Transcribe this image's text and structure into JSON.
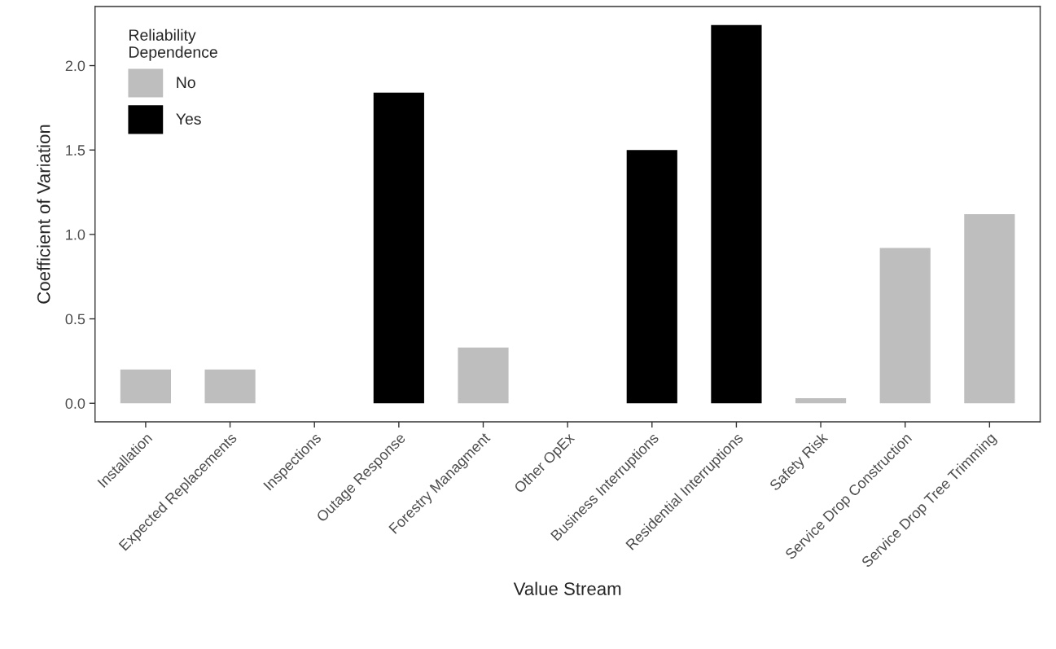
{
  "chart_data": {
    "type": "bar",
    "xlabel": "Value Stream",
    "ylabel": "Coefficient of Variation",
    "legend_title": "Reliability\nDependence",
    "categories": [
      "Installation",
      "Expected Replacements",
      "Inspections",
      "Outage Response",
      "Forestry Managment",
      "Other OpEx",
      "Business Interruptions",
      "Residential Interruptions",
      "Safety Risk",
      "Service Drop Construction",
      "Service Drop Tree Trimming"
    ],
    "series": [
      {
        "name": "No",
        "color": "#bebebe",
        "values": [
          0.2,
          0.2,
          0,
          null,
          0.33,
          0,
          null,
          null,
          0.03,
          0.92,
          1.12
        ]
      },
      {
        "name": "Yes",
        "color": "#000000",
        "values": [
          null,
          null,
          null,
          1.84,
          null,
          null,
          1.5,
          2.24,
          null,
          null,
          null
        ]
      }
    ],
    "ylim": [
      -0.11,
      2.35
    ],
    "yticks": [
      {
        "value": 0,
        "label": "0.0"
      },
      {
        "value": 0.5,
        "label": "0.5"
      },
      {
        "value": 1,
        "label": "1.0"
      },
      {
        "value": 1.5,
        "label": "1.5"
      },
      {
        "value": 2,
        "label": "2.0"
      }
    ],
    "grid": false,
    "legend": "top left"
  }
}
